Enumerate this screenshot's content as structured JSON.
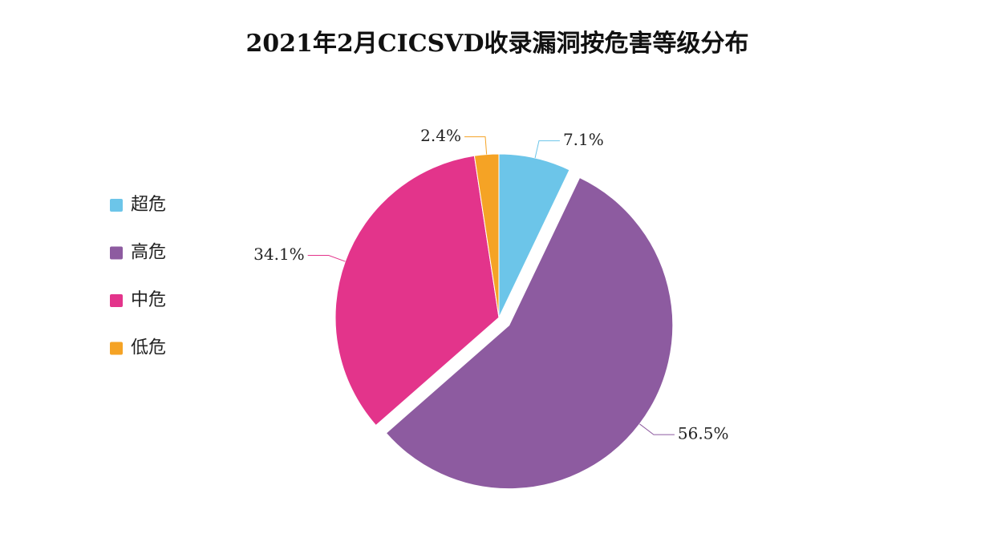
{
  "chart_data": {
    "type": "pie",
    "title": "2021年2月CICSVD收录漏洞按危害等级分布",
    "categories": [
      "超危",
      "高危",
      "中危",
      "低危"
    ],
    "values": [
      7.1,
      56.5,
      34.1,
      2.4
    ],
    "value_labels": [
      "7.1%",
      "56.5%",
      "34.1%",
      "2.4%"
    ],
    "colors": [
      "#6cc5e9",
      "#8d5ba0",
      "#e3348b",
      "#f5a325"
    ],
    "exploded": [
      false,
      true,
      false,
      false
    ],
    "legend": "left"
  }
}
